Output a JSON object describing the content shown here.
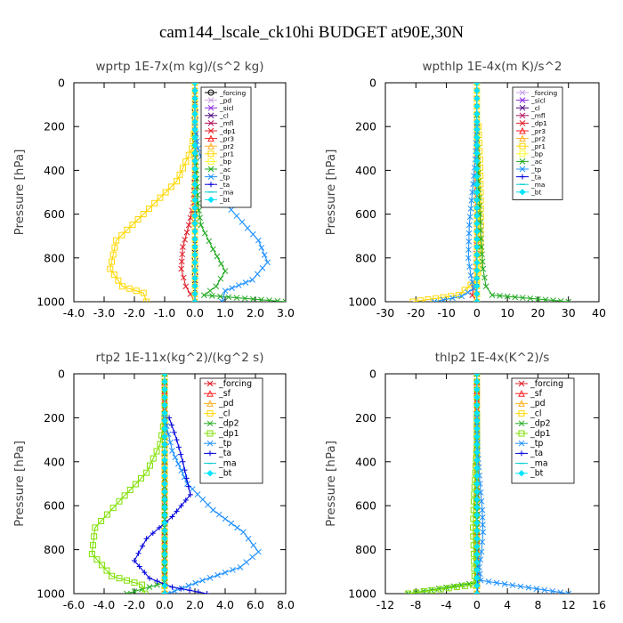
{
  "title": "cam144_lscale_ck10hi  BUDGET at90E,30N",
  "chart_data": [
    {
      "type": "line",
      "title": "wprtp   1E-7x(m kg)/(s^2 kg)",
      "ylabel": "Pressure [hPa]",
      "xlim": [
        -4.0,
        3.0
      ],
      "ylim": [
        1000,
        0
      ],
      "xticks": [
        "-4.0",
        "-3.0",
        "-2.0",
        "-1.0",
        "0.0",
        "1.0",
        "2.0",
        "3.0"
      ],
      "yticks": [
        "0",
        "200",
        "400",
        "600",
        "800",
        "1000"
      ],
      "legend": "top-right",
      "series": [
        {
          "name": "_forcing",
          "color": "#000000",
          "marker": "circle",
          "x": [
            0,
            0,
            0,
            0,
            0,
            0
          ],
          "y": [
            0,
            200,
            400,
            600,
            800,
            1000
          ]
        },
        {
          "name": "_pd",
          "color": "#c8a2e8",
          "marker": "cross",
          "x": [
            0,
            0,
            0,
            0,
            0
          ],
          "y": [
            0,
            250,
            500,
            750,
            1000
          ]
        },
        {
          "name": "_sicl",
          "color": "#8a2be2",
          "marker": "cross",
          "x": [
            0,
            0,
            0,
            0,
            0
          ],
          "y": [
            0,
            250,
            500,
            750,
            1000
          ]
        },
        {
          "name": "_cl",
          "color": "#4b0082",
          "marker": "cross",
          "x": [
            0,
            0,
            0,
            0,
            0
          ],
          "y": [
            0,
            250,
            500,
            750,
            1000
          ]
        },
        {
          "name": "_mfl",
          "color": "#b0125e",
          "marker": "cross",
          "x": [
            0,
            0,
            0,
            0,
            0
          ],
          "y": [
            0,
            250,
            500,
            750,
            1000
          ]
        },
        {
          "name": "_dp1",
          "color": "#e0202a",
          "marker": "cross",
          "x": [
            0,
            0,
            -0.05,
            -0.2,
            -0.4,
            -0.45,
            -0.3,
            0
          ],
          "y": [
            0,
            400,
            550,
            650,
            750,
            850,
            930,
            1000
          ]
        },
        {
          "name": "_pr3",
          "color": "#ff2020",
          "marker": "triangle",
          "x": [
            0,
            0,
            0,
            0,
            0
          ],
          "y": [
            0,
            250,
            500,
            750,
            1000
          ]
        },
        {
          "name": "_pr2",
          "color": "#ffb020",
          "marker": "triangle",
          "x": [
            0,
            0,
            0,
            0,
            0
          ],
          "y": [
            0,
            250,
            500,
            750,
            1000
          ]
        },
        {
          "name": "_pr1",
          "color": "#ffd700",
          "marker": "square",
          "x": [
            0,
            -0.1,
            -0.6,
            -1.7,
            -2.6,
            -2.8,
            -2.4,
            -1.7,
            -1.6
          ],
          "y": [
            200,
            300,
            450,
            600,
            720,
            850,
            930,
            960,
            1000
          ]
        },
        {
          "name": "_bp",
          "color": "#ffff33",
          "marker": "square",
          "x": [
            0,
            0,
            0,
            0,
            0
          ],
          "y": [
            0,
            250,
            500,
            750,
            1000
          ]
        },
        {
          "name": "_ac",
          "color": "#22aa22",
          "marker": "cross",
          "x": [
            0,
            0.05,
            0.1,
            0.2,
            0.6,
            1.0,
            0.7,
            0.3,
            3.0
          ],
          "y": [
            250,
            400,
            550,
            650,
            760,
            860,
            930,
            970,
            1000
          ]
        },
        {
          "name": "_tp",
          "color": "#1e90ff",
          "marker": "cross",
          "x": [
            0,
            0.1,
            0.5,
            1.2,
            2.1,
            2.4,
            1.9,
            1.0,
            0.9
          ],
          "y": [
            200,
            300,
            450,
            580,
            720,
            820,
            900,
            950,
            1000
          ]
        },
        {
          "name": "_ta",
          "color": "#0000dd",
          "marker": "plus",
          "x": [
            0,
            0,
            0,
            0,
            0
          ],
          "y": [
            0,
            250,
            500,
            750,
            1000
          ]
        },
        {
          "name": "_ma",
          "color": "#00cccc",
          "marker": "dash",
          "x": [
            0,
            0,
            0,
            0,
            0
          ],
          "y": [
            0,
            250,
            500,
            750,
            1000
          ]
        },
        {
          "name": "_bt",
          "color": "#00e5ff",
          "marker": "diamond",
          "x": [
            0,
            0,
            0,
            0,
            0
          ],
          "y": [
            0,
            250,
            500,
            750,
            1000
          ]
        }
      ]
    },
    {
      "type": "line",
      "title": "wpthlp   1E-4x(m K)/s^2",
      "ylabel": "Pressure [hPa]",
      "xlim": [
        -30,
        40
      ],
      "ylim": [
        1000,
        0
      ],
      "xticks": [
        "-30",
        "-20",
        "-10",
        "0",
        "10",
        "20",
        "30",
        "40"
      ],
      "yticks": [
        "0",
        "200",
        "400",
        "600",
        "800",
        "1000"
      ],
      "legend": "top-right",
      "series": [
        {
          "name": "_forcing",
          "color": "#c8a2e8",
          "marker": "cross",
          "x": [
            0,
            0,
            0,
            0,
            0
          ],
          "y": [
            0,
            250,
            500,
            750,
            1000
          ]
        },
        {
          "name": "_sicl",
          "color": "#8a2be2",
          "marker": "cross",
          "x": [
            0,
            0,
            0,
            0,
            0
          ],
          "y": [
            0,
            250,
            500,
            750,
            1000
          ]
        },
        {
          "name": "_cl",
          "color": "#4b0082",
          "marker": "cross",
          "x": [
            0,
            0,
            0,
            0,
            0
          ],
          "y": [
            0,
            250,
            500,
            750,
            1000
          ]
        },
        {
          "name": "_mfl",
          "color": "#b0125e",
          "marker": "cross",
          "x": [
            0,
            0,
            0,
            0,
            0
          ],
          "y": [
            0,
            250,
            500,
            750,
            1000
          ]
        },
        {
          "name": "_dp1",
          "color": "#e0202a",
          "marker": "cross",
          "x": [
            0,
            0,
            0,
            -0.5,
            -1.5,
            0
          ],
          "y": [
            0,
            400,
            700,
            900,
            970,
            1000
          ]
        },
        {
          "name": "_pr3",
          "color": "#ff2020",
          "marker": "triangle",
          "x": [
            0,
            0,
            0,
            0,
            0
          ],
          "y": [
            0,
            250,
            500,
            750,
            1000
          ]
        },
        {
          "name": "_pr2",
          "color": "#ffb020",
          "marker": "triangle",
          "x": [
            0,
            0,
            0,
            0,
            0
          ],
          "y": [
            0,
            250,
            500,
            750,
            1000
          ]
        },
        {
          "name": "_pr1",
          "color": "#ffd700",
          "marker": "square",
          "x": [
            0.5,
            1.0,
            1.2,
            1.3,
            1.0,
            0,
            -6,
            -21
          ],
          "y": [
            200,
            350,
            500,
            650,
            800,
            900,
            970,
            1000
          ]
        },
        {
          "name": "_bp",
          "color": "#ffff33",
          "marker": "square",
          "x": [
            0,
            0,
            0,
            0,
            0
          ],
          "y": [
            0,
            250,
            500,
            750,
            1000
          ]
        },
        {
          "name": "_ac",
          "color": "#22aa22",
          "marker": "cross",
          "x": [
            0,
            0.2,
            0.5,
            1.0,
            1.5,
            2.0,
            3.0,
            5.0,
            30
          ],
          "y": [
            150,
            300,
            450,
            600,
            750,
            850,
            930,
            970,
            1000
          ]
        },
        {
          "name": "_tp",
          "color": "#1e90ff",
          "marker": "cross",
          "x": [
            0,
            -0.5,
            -1.5,
            -2.5,
            -2.8,
            -2.0,
            -1.0,
            -5.0,
            -14
          ],
          "y": [
            200,
            350,
            500,
            650,
            800,
            880,
            940,
            975,
            1000
          ]
        },
        {
          "name": "_ta",
          "color": "#0000dd",
          "marker": "plus",
          "x": [
            0,
            0,
            0,
            0,
            0
          ],
          "y": [
            0,
            250,
            500,
            750,
            1000
          ]
        },
        {
          "name": "_ma",
          "color": "#00cccc",
          "marker": "dash",
          "x": [
            0,
            0,
            0,
            0,
            0
          ],
          "y": [
            0,
            250,
            500,
            750,
            1000
          ]
        },
        {
          "name": "_bt",
          "color": "#00e5ff",
          "marker": "diamond",
          "x": [
            0,
            0,
            0,
            0,
            0
          ],
          "y": [
            0,
            250,
            500,
            750,
            1000
          ]
        }
      ]
    },
    {
      "type": "line",
      "title": "rtp2   1E-11x(kg^2)/(kg^2 s)",
      "ylabel": "Pressure [hPa]",
      "xlim": [
        -6.0,
        8.0
      ],
      "ylim": [
        1000,
        0
      ],
      "xticks": [
        "-6.0",
        "-4.0",
        "-2.0",
        "0.0",
        "2.0",
        "4.0",
        "6.0",
        "8.0"
      ],
      "yticks": [
        "0",
        "200",
        "400",
        "600",
        "800",
        "1000"
      ],
      "legend": "top-right",
      "series": [
        {
          "name": "_forcing",
          "color": "#e0202a",
          "marker": "cross",
          "x": [
            0,
            0,
            0,
            0,
            0,
            0
          ],
          "y": [
            0,
            200,
            400,
            600,
            800,
            1000
          ]
        },
        {
          "name": "_sf",
          "color": "#ff2020",
          "marker": "triangle",
          "x": [
            0,
            0,
            0,
            0,
            0,
            0
          ],
          "y": [
            0,
            200,
            400,
            600,
            800,
            1000
          ]
        },
        {
          "name": "_pd",
          "color": "#ffb020",
          "marker": "triangle",
          "x": [
            0,
            0,
            0,
            0,
            0
          ],
          "y": [
            0,
            250,
            500,
            750,
            1000
          ]
        },
        {
          "name": "_cl",
          "color": "#ffd700",
          "marker": "square",
          "x": [
            0,
            0,
            0,
            0,
            0
          ],
          "y": [
            0,
            250,
            500,
            750,
            1000
          ]
        },
        {
          "name": "_dp2",
          "color": "#22aa22",
          "marker": "cross",
          "x": [
            0,
            0,
            0,
            0,
            -2.5
          ],
          "y": [
            0,
            400,
            700,
            950,
            1000
          ]
        },
        {
          "name": "_dp1",
          "color": "#7fe000",
          "marker": "square",
          "x": [
            0,
            -0.3,
            -1.2,
            -3.0,
            -4.6,
            -4.8,
            -3.5,
            -1.5,
            -1.3
          ],
          "y": [
            200,
            320,
            450,
            580,
            700,
            820,
            920,
            960,
            1000
          ]
        },
        {
          "name": "_tp",
          "color": "#1e90ff",
          "marker": "cross",
          "x": [
            0,
            0.5,
            1.5,
            3.2,
            5.2,
            6.2,
            5.0,
            2.5,
            0.2
          ],
          "y": [
            200,
            350,
            500,
            620,
            720,
            810,
            880,
            940,
            1000
          ]
        },
        {
          "name": "_ta",
          "color": "#0000dd",
          "marker": "plus",
          "x": [
            0.3,
            0.8,
            1.2,
            1.7,
            0.5,
            -1.2,
            -2.0,
            -1.0,
            0.5,
            2.8
          ],
          "y": [
            200,
            300,
            400,
            550,
            650,
            750,
            850,
            930,
            970,
            1000
          ]
        },
        {
          "name": "_ma",
          "color": "#00cccc",
          "marker": "dash",
          "x": [
            0,
            0,
            0,
            0,
            0
          ],
          "y": [
            0,
            250,
            500,
            750,
            1000
          ]
        },
        {
          "name": "_bt",
          "color": "#00e5ff",
          "marker": "diamond",
          "x": [
            0,
            0,
            0,
            0,
            0
          ],
          "y": [
            0,
            250,
            500,
            750,
            1000
          ]
        }
      ]
    },
    {
      "type": "line",
      "title": "thlp2   1E-4x(K^2)/s",
      "ylabel": "Pressure [hPa]",
      "xlim": [
        -12,
        16
      ],
      "ylim": [
        1000,
        0
      ],
      "xticks": [
        "-12",
        "-8",
        "-4",
        "0",
        "4",
        "8",
        "12",
        "16"
      ],
      "yticks": [
        "0",
        "200",
        "400",
        "600",
        "800",
        "1000"
      ],
      "legend": "top-right",
      "series": [
        {
          "name": "_forcing",
          "color": "#e0202a",
          "marker": "cross",
          "x": [
            0,
            0,
            0,
            0,
            0,
            0
          ],
          "y": [
            0,
            200,
            400,
            600,
            800,
            1000
          ]
        },
        {
          "name": "_sf",
          "color": "#ff2020",
          "marker": "triangle",
          "x": [
            0,
            0,
            0,
            0,
            0,
            0
          ],
          "y": [
            0,
            200,
            400,
            600,
            800,
            1000
          ]
        },
        {
          "name": "_pd",
          "color": "#ffb020",
          "marker": "triangle",
          "x": [
            0,
            0,
            0,
            0,
            0
          ],
          "y": [
            0,
            250,
            500,
            750,
            1000
          ]
        },
        {
          "name": "_cl",
          "color": "#ffd700",
          "marker": "square",
          "x": [
            0,
            0,
            0,
            0,
            0
          ],
          "y": [
            0,
            250,
            500,
            750,
            1000
          ]
        },
        {
          "name": "_dp2",
          "color": "#22aa22",
          "marker": "cross",
          "x": [
            0,
            0,
            0,
            0,
            -9
          ],
          "y": [
            0,
            400,
            700,
            950,
            1000
          ]
        },
        {
          "name": "_dp1",
          "color": "#7fe000",
          "marker": "square",
          "x": [
            0,
            0,
            -0.2,
            -0.4,
            -0.5,
            -0.4,
            -0.3,
            -0.5,
            -9
          ],
          "y": [
            200,
            320,
            450,
            580,
            700,
            820,
            920,
            960,
            1000
          ]
        },
        {
          "name": "_tp",
          "color": "#1e90ff",
          "marker": "cross",
          "x": [
            0,
            0.1,
            0.4,
            0.7,
            0.8,
            0.6,
            0.3,
            0.5,
            12
          ],
          "y": [
            200,
            350,
            500,
            620,
            720,
            810,
            880,
            940,
            1000
          ]
        },
        {
          "name": "_ta",
          "color": "#0000dd",
          "marker": "plus",
          "x": [
            0,
            0,
            0,
            0,
            0.1
          ],
          "y": [
            0,
            250,
            500,
            750,
            1000
          ]
        },
        {
          "name": "_ma",
          "color": "#00cccc",
          "marker": "dash",
          "x": [
            0,
            0,
            0,
            0,
            0
          ],
          "y": [
            0,
            250,
            500,
            750,
            1000
          ]
        },
        {
          "name": "_bt",
          "color": "#00e5ff",
          "marker": "diamond",
          "x": [
            0,
            0,
            0,
            0,
            0
          ],
          "y": [
            0,
            250,
            500,
            750,
            1000
          ]
        }
      ]
    }
  ]
}
